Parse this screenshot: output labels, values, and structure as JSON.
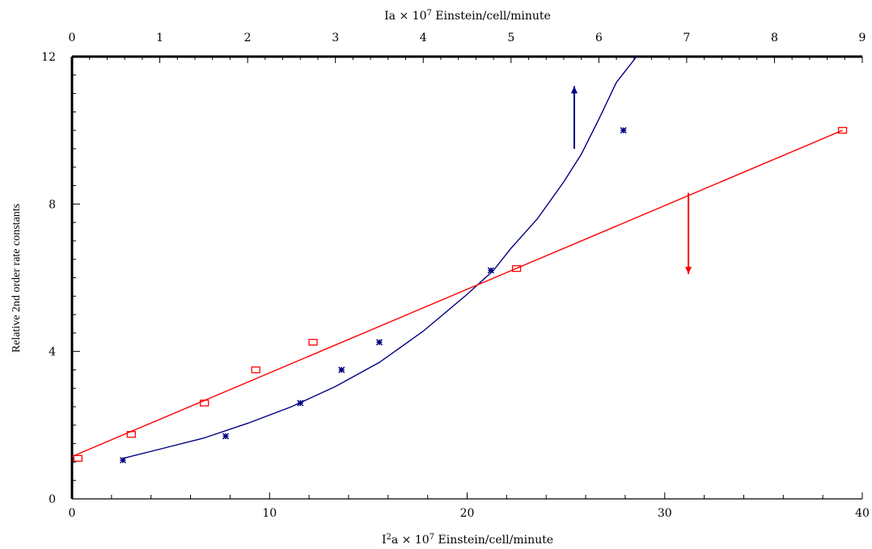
{
  "chart_data": {
    "type": "scatter",
    "title": "",
    "xlabel_bottom_prefix": "I",
    "xlabel_bottom_sup": "2",
    "xlabel_bottom_mid": "a × 10",
    "xlabel_bottom_sup2": "7",
    "xlabel_bottom_suffix": " Einstein/cell/minute",
    "xlabel_top_prefix": "Ia × 10",
    "xlabel_top_sup": "7",
    "xlabel_top_suffix": " Einstein/cell/minute",
    "ylabel": "Relative 2nd order rate constants",
    "xlim_bottom": [
      0,
      40
    ],
    "xlim_top": [
      0,
      9
    ],
    "ylim": [
      0,
      12
    ],
    "x_bottom_ticks": [
      0,
      10,
      20,
      30,
      40
    ],
    "x_top_ticks": [
      0,
      1,
      2,
      3,
      4,
      5,
      6,
      7,
      8,
      9
    ],
    "y_ticks": [
      0,
      4,
      8,
      12
    ],
    "series": [
      {
        "marker": "star",
        "axis": "top",
        "color": "#000080",
        "points": [
          [
            0.58,
            1.05
          ],
          [
            1.75,
            1.7
          ],
          [
            2.6,
            2.6
          ],
          [
            3.07,
            3.5
          ],
          [
            3.5,
            4.25
          ],
          [
            4.77,
            6.2
          ],
          [
            6.28,
            10.0
          ]
        ],
        "fit": "curve",
        "fit_points": [
          [
            0.58,
            1.1
          ],
          [
            1.0,
            1.35
          ],
          [
            1.5,
            1.65
          ],
          [
            2.0,
            2.05
          ],
          [
            2.5,
            2.5
          ],
          [
            3.0,
            3.05
          ],
          [
            3.5,
            3.7
          ],
          [
            4.0,
            4.55
          ],
          [
            4.5,
            5.55
          ],
          [
            4.8,
            6.2
          ],
          [
            5.0,
            6.8
          ],
          [
            5.3,
            7.6
          ],
          [
            5.6,
            8.6
          ],
          [
            5.8,
            9.35
          ],
          [
            6.0,
            10.3
          ],
          [
            6.2,
            11.3
          ],
          [
            6.43,
            12.0
          ]
        ]
      },
      {
        "marker": "square",
        "axis": "bottom",
        "color": "#ff0000",
        "points": [
          [
            0.3,
            1.1
          ],
          [
            3.0,
            1.75
          ],
          [
            6.7,
            2.6
          ],
          [
            9.3,
            3.5
          ],
          [
            12.2,
            4.25
          ],
          [
            22.5,
            6.25
          ],
          [
            39.0,
            10.0
          ]
        ],
        "fit": "line",
        "fit_points": [
          [
            0.0,
            1.15
          ],
          [
            39.0,
            10.0
          ]
        ]
      }
    ],
    "annotations": [
      {
        "type": "arrow-up",
        "x_top": 5.72,
        "y_from": 9.5,
        "y_to": 11.2,
        "color": "#000080"
      },
      {
        "type": "arrow-down",
        "x_bottom": 31.2,
        "y_from": 8.3,
        "y_to": 6.1,
        "color": "#ff0000"
      }
    ],
    "grid": false,
    "legend": "none"
  }
}
